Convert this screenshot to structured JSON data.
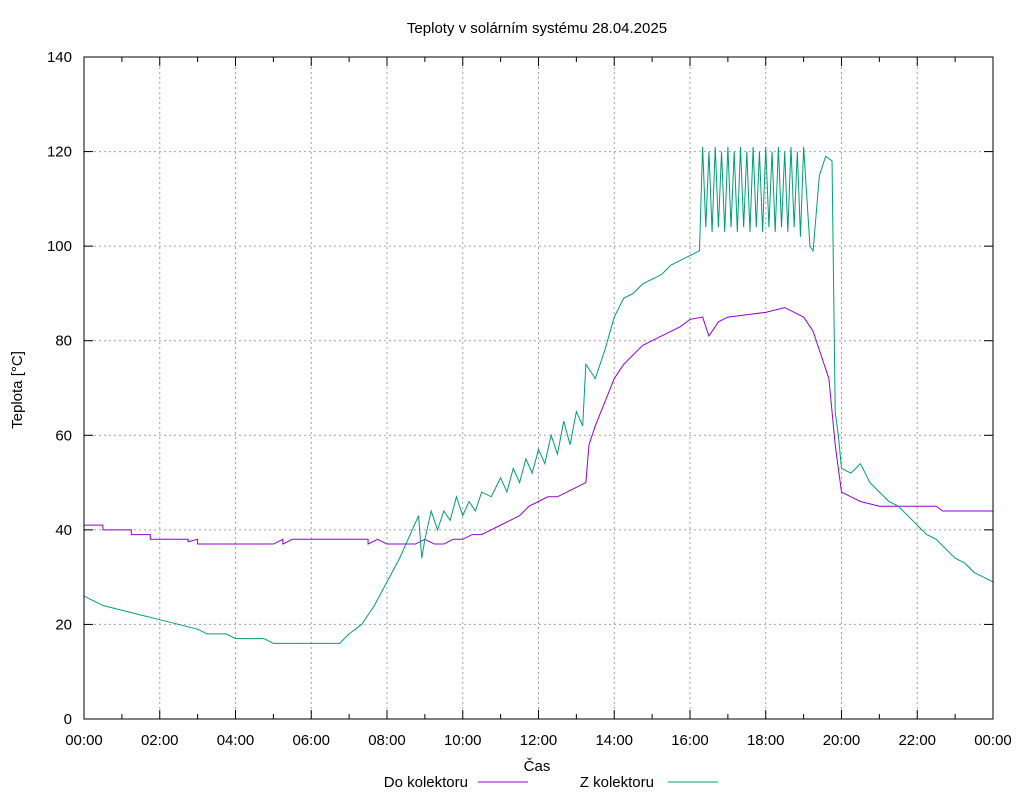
{
  "chart_data": {
    "type": "line",
    "title": "Teploty v solárním systému 28.04.2025",
    "xlabel": "Čas",
    "ylabel": "Teplota [°C]",
    "xlim": [
      "00:00",
      "24:00"
    ],
    "ylim": [
      0,
      140
    ],
    "grid": true,
    "legend_position": "bottom",
    "x_tick_labels": [
      "00:00",
      "02:00",
      "04:00",
      "06:00",
      "08:00",
      "10:00",
      "12:00",
      "14:00",
      "16:00",
      "18:00",
      "20:00",
      "22:00",
      "00:00"
    ],
    "y_tick_labels": [
      "0",
      "20",
      "40",
      "60",
      "80",
      "100",
      "120",
      "140"
    ],
    "series": [
      {
        "name": "Do kolektoru",
        "color": "#9400d3",
        "points": [
          [
            "00:00",
            41
          ],
          [
            "00:30",
            41
          ],
          [
            "00:30",
            40
          ],
          [
            "01:15",
            40
          ],
          [
            "01:15",
            39
          ],
          [
            "01:45",
            39
          ],
          [
            "01:45",
            38
          ],
          [
            "02:30",
            38
          ],
          [
            "02:45",
            38
          ],
          [
            "02:45",
            37.5
          ],
          [
            "03:00",
            38
          ],
          [
            "03:00",
            37
          ],
          [
            "04:00",
            37
          ],
          [
            "05:00",
            37
          ],
          [
            "05:15",
            38
          ],
          [
            "05:15",
            37
          ],
          [
            "05:30",
            38
          ],
          [
            "06:00",
            38
          ],
          [
            "07:00",
            38
          ],
          [
            "07:30",
            38
          ],
          [
            "07:30",
            37
          ],
          [
            "07:45",
            38
          ],
          [
            "08:00",
            37
          ],
          [
            "08:45",
            37
          ],
          [
            "09:00",
            38
          ],
          [
            "09:15",
            37
          ],
          [
            "09:30",
            37
          ],
          [
            "09:45",
            38
          ],
          [
            "10:00",
            38
          ],
          [
            "10:15",
            39
          ],
          [
            "10:30",
            39
          ],
          [
            "10:45",
            40
          ],
          [
            "11:00",
            41
          ],
          [
            "11:15",
            42
          ],
          [
            "11:30",
            43
          ],
          [
            "11:45",
            45
          ],
          [
            "12:00",
            46
          ],
          [
            "12:15",
            47
          ],
          [
            "12:30",
            47
          ],
          [
            "12:45",
            48
          ],
          [
            "13:00",
            49
          ],
          [
            "13:15",
            50
          ],
          [
            "13:20",
            58
          ],
          [
            "13:30",
            62
          ],
          [
            "13:45",
            67
          ],
          [
            "14:00",
            72
          ],
          [
            "14:15",
            75
          ],
          [
            "14:30",
            77
          ],
          [
            "14:45",
            79
          ],
          [
            "15:00",
            80
          ],
          [
            "15:15",
            81
          ],
          [
            "15:30",
            82
          ],
          [
            "15:45",
            83
          ],
          [
            "16:00",
            84.5
          ],
          [
            "16:20",
            85
          ],
          [
            "16:30",
            81
          ],
          [
            "16:45",
            84
          ],
          [
            "17:00",
            85
          ],
          [
            "17:30",
            85.5
          ],
          [
            "18:00",
            86
          ],
          [
            "18:30",
            87
          ],
          [
            "18:45",
            86
          ],
          [
            "19:00",
            85
          ],
          [
            "19:15",
            82
          ],
          [
            "19:30",
            76
          ],
          [
            "19:40",
            72
          ],
          [
            "19:50",
            58
          ],
          [
            "20:00",
            48
          ],
          [
            "20:15",
            47
          ],
          [
            "20:30",
            46
          ],
          [
            "20:45",
            45.5
          ],
          [
            "21:00",
            45
          ],
          [
            "21:30",
            45
          ],
          [
            "22:00",
            45
          ],
          [
            "22:30",
            45
          ],
          [
            "22:40",
            44
          ],
          [
            "23:00",
            44
          ],
          [
            "24:00",
            44
          ]
        ]
      },
      {
        "name": "Z kolektoru",
        "color": "#009e73",
        "points": [
          [
            "00:00",
            26
          ],
          [
            "00:15",
            25
          ],
          [
            "00:30",
            24
          ],
          [
            "01:00",
            23
          ],
          [
            "01:30",
            22
          ],
          [
            "02:00",
            21
          ],
          [
            "02:30",
            20
          ],
          [
            "03:00",
            19
          ],
          [
            "03:15",
            18
          ],
          [
            "03:45",
            18
          ],
          [
            "04:00",
            17
          ],
          [
            "04:45",
            17
          ],
          [
            "05:00",
            16
          ],
          [
            "06:00",
            16
          ],
          [
            "06:45",
            16
          ],
          [
            "07:00",
            18
          ],
          [
            "07:20",
            20
          ],
          [
            "07:40",
            24
          ],
          [
            "08:00",
            29
          ],
          [
            "08:20",
            34
          ],
          [
            "08:40",
            40
          ],
          [
            "08:50",
            43
          ],
          [
            "08:55",
            34
          ],
          [
            "09:00",
            38
          ],
          [
            "09:10",
            44
          ],
          [
            "09:20",
            40
          ],
          [
            "09:30",
            44
          ],
          [
            "09:40",
            42
          ],
          [
            "09:50",
            47
          ],
          [
            "10:00",
            43
          ],
          [
            "10:10",
            46
          ],
          [
            "10:20",
            44
          ],
          [
            "10:30",
            48
          ],
          [
            "10:45",
            47
          ],
          [
            "11:00",
            51
          ],
          [
            "11:10",
            48
          ],
          [
            "11:20",
            53
          ],
          [
            "11:30",
            50
          ],
          [
            "11:40",
            55
          ],
          [
            "11:50",
            52
          ],
          [
            "12:00",
            57
          ],
          [
            "12:10",
            54
          ],
          [
            "12:20",
            60
          ],
          [
            "12:30",
            56
          ],
          [
            "12:40",
            63
          ],
          [
            "12:50",
            58
          ],
          [
            "13:00",
            65
          ],
          [
            "13:10",
            62
          ],
          [
            "13:15",
            75
          ],
          [
            "13:30",
            72
          ],
          [
            "13:45",
            78
          ],
          [
            "14:00",
            85
          ],
          [
            "14:15",
            89
          ],
          [
            "14:30",
            90
          ],
          [
            "14:45",
            92
          ],
          [
            "15:00",
            93
          ],
          [
            "15:15",
            94
          ],
          [
            "15:30",
            96
          ],
          [
            "15:45",
            97
          ],
          [
            "16:00",
            98
          ],
          [
            "16:15",
            99
          ],
          [
            "16:20",
            121
          ],
          [
            "16:25",
            104
          ],
          [
            "16:30",
            120
          ],
          [
            "16:35",
            103
          ],
          [
            "16:40",
            121
          ],
          [
            "16:45",
            104
          ],
          [
            "16:50",
            120
          ],
          [
            "16:55",
            103
          ],
          [
            "17:00",
            121
          ],
          [
            "17:05",
            104
          ],
          [
            "17:10",
            120
          ],
          [
            "17:15",
            103
          ],
          [
            "17:20",
            121
          ],
          [
            "17:25",
            104
          ],
          [
            "17:30",
            120
          ],
          [
            "17:35",
            103
          ],
          [
            "17:40",
            121
          ],
          [
            "17:45",
            104
          ],
          [
            "17:50",
            120
          ],
          [
            "17:55",
            103
          ],
          [
            "18:00",
            121
          ],
          [
            "18:05",
            104
          ],
          [
            "18:10",
            120
          ],
          [
            "18:15",
            103
          ],
          [
            "18:20",
            121
          ],
          [
            "18:25",
            104
          ],
          [
            "18:30",
            120
          ],
          [
            "18:35",
            103
          ],
          [
            "18:40",
            121
          ],
          [
            "18:45",
            104
          ],
          [
            "18:50",
            120
          ],
          [
            "18:55",
            102
          ],
          [
            "19:00",
            121
          ],
          [
            "19:10",
            100
          ],
          [
            "19:15",
            99
          ],
          [
            "19:25",
            115
          ],
          [
            "19:35",
            119
          ],
          [
            "19:45",
            118
          ],
          [
            "19:50",
            65
          ],
          [
            "19:55",
            60
          ],
          [
            "20:00",
            53
          ],
          [
            "20:15",
            52
          ],
          [
            "20:30",
            54
          ],
          [
            "20:45",
            50
          ],
          [
            "21:00",
            48
          ],
          [
            "21:15",
            46
          ],
          [
            "21:30",
            45
          ],
          [
            "21:45",
            43
          ],
          [
            "22:00",
            41
          ],
          [
            "22:15",
            39
          ],
          [
            "22:30",
            38
          ],
          [
            "22:45",
            36
          ],
          [
            "23:00",
            34
          ],
          [
            "23:15",
            33
          ],
          [
            "23:30",
            31
          ],
          [
            "23:45",
            30
          ],
          [
            "24:00",
            29
          ]
        ]
      }
    ]
  }
}
